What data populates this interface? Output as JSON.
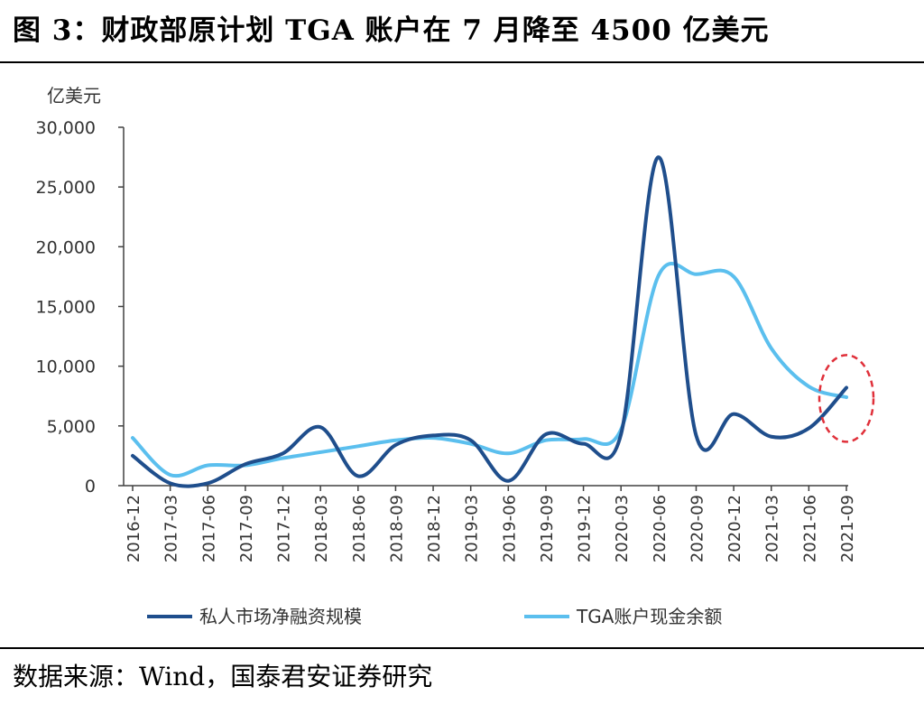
{
  "figure_title": "图 3：财政部原计划 TGA 账户在 7 月降至 4500 亿美元",
  "source_note": "数据来源：Wind，国泰君安证券研究",
  "chart_data": {
    "type": "line",
    "title": "",
    "ylabel": "亿美元",
    "xlabel": "",
    "ylim": [
      0,
      30000
    ],
    "yticks": [
      0,
      5000,
      10000,
      15000,
      20000,
      25000,
      30000
    ],
    "ytick_labels": [
      "0",
      "5,000",
      "10,000",
      "15,000",
      "20,000",
      "25,000",
      "30,000"
    ],
    "x": [
      "2016-12",
      "2017-03",
      "2017-06",
      "2017-09",
      "2017-12",
      "2018-03",
      "2018-06",
      "2018-09",
      "2018-12",
      "2019-03",
      "2019-06",
      "2019-09",
      "2019-12",
      "2020-03",
      "2020-06",
      "2020-09",
      "2020-12",
      "2021-03",
      "2021-06",
      "2021-09"
    ],
    "legend_position": "bottom",
    "grid": false,
    "series": [
      {
        "name": "私人市场净融资规模",
        "color": "#1f4e8c",
        "values": [
          2500,
          200,
          200,
          1800,
          2700,
          4900,
          800,
          3400,
          4200,
          3800,
          400,
          4300,
          3500,
          4300,
          27500,
          4200,
          6000,
          4100,
          4800,
          8200
        ]
      },
      {
        "name": "TGA账户现金余额",
        "color": "#5bbfee",
        "values": [
          4000,
          900,
          1700,
          1700,
          2300,
          2800,
          3300,
          3800,
          4000,
          3500,
          2700,
          3800,
          3900,
          4700,
          17600,
          17700,
          17500,
          11500,
          8300,
          7400
        ]
      }
    ],
    "annotation": {
      "type": "dashed-ellipse",
      "color": "#e0303a",
      "at_x": "2021-09"
    }
  }
}
